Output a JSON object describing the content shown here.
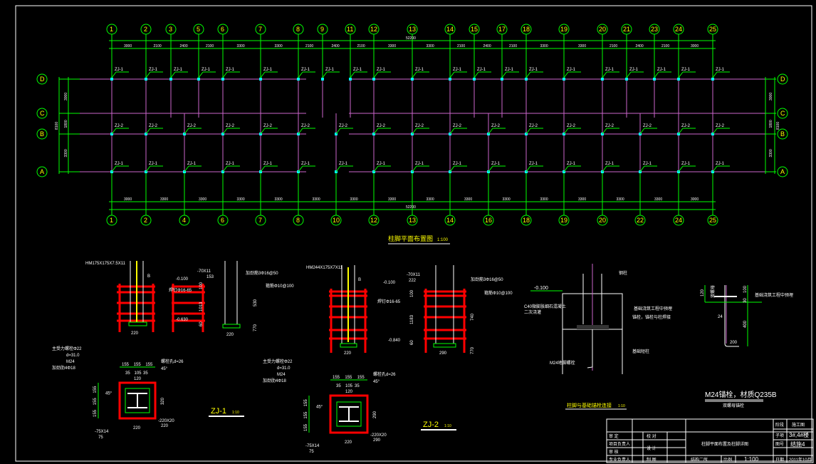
{
  "plan": {
    "axes_top": [
      "1",
      "2",
      "3",
      "5",
      "6",
      "7",
      "8",
      "9",
      "11",
      "12",
      "13",
      "14",
      "15",
      "17",
      "18",
      "19",
      "20",
      "21",
      "23",
      "24",
      "25"
    ],
    "dims_top": [
      "3000",
      "2100",
      "2400",
      "2100",
      "3300",
      "3300",
      "2100",
      "2400",
      "2100",
      "3300",
      "3300",
      "2100",
      "2400",
      "2100",
      "3300",
      "3300",
      "2100",
      "2400",
      "2100",
      "3000"
    ],
    "axes_bottom": [
      "1",
      "2",
      "4",
      "6",
      "7",
      "8",
      "10",
      "12",
      "13",
      "14",
      "16",
      "18",
      "19",
      "20",
      "22",
      "24",
      "25"
    ],
    "dims_bottom": [
      "3000",
      "3300",
      "3300",
      "3300",
      "3300",
      "3300",
      "3300",
      "3300",
      "3300",
      "3300",
      "3300",
      "3300",
      "3300",
      "3300",
      "3300",
      "3000"
    ],
    "total": "52200",
    "rows": [
      "D",
      "C",
      "B",
      "A"
    ],
    "row_dims": [
      "3000",
      "1800",
      "3300"
    ],
    "row_total": "8100",
    "col_label_1": "ZJ-1",
    "col_label_2": "ZJ-2",
    "title": "柱脚平面布置图",
    "scale": "1:100"
  },
  "zj1_elev": {
    "section": "HM175X175X7.5X11",
    "cut": "B",
    "elev_top": "-0.100",
    "elev_bot": "-0.630",
    "plate": "-70X11",
    "plate_w": "153",
    "stud": "焊钉Φ16-65",
    "bar": "加劲筋3Φ16@50",
    "stirrup": "箍筋Φ10@100",
    "d1": "100",
    "d2": "1013",
    "d3": "60",
    "h1": "530",
    "h2": "770",
    "w1": "220",
    "w2": "220"
  },
  "zj2_elev": {
    "section": "HM244X175X7X11",
    "cut": "B",
    "elev_top": "-0.100",
    "elev_bot": "-0.840",
    "plate": "-70X11",
    "plate_w": "222",
    "stud": "焊钉Φ16-65",
    "bar": "加劲筋3Φ16@50",
    "stirrup": "箍筋Φ10@100",
    "d1": "100",
    "d2": "1183",
    "d3": "60",
    "h1": "740",
    "h2": "770",
    "w1": "220",
    "w2": "290"
  },
  "zj1_plan": {
    "dims_top": [
      "155",
      "155",
      "155"
    ],
    "dims_mid": [
      "35",
      "105",
      "35"
    ],
    "d120": "120",
    "side": [
      "155",
      "155",
      "155"
    ],
    "depth": "320",
    "width": "220",
    "angle": "45°",
    "bolt1": "主受力螺栓Φ22",
    "bolt2": "d=31.0",
    "bolt3": "M24",
    "bolt4": "加劲肋4Φ18",
    "hole": "螺栓孔d=26",
    "base": "-220X20",
    "base_w": "220",
    "stiff": "-75X14",
    "stiff_w": "75",
    "name": "ZJ-1",
    "scale": "1:10"
  },
  "zj2_plan": {
    "dims_top": [
      "155",
      "155",
      "155"
    ],
    "dims_mid": [
      "35",
      "105",
      "35"
    ],
    "d120": "120",
    "side": [
      "155",
      "155",
      "155"
    ],
    "depth": "290",
    "width": "220",
    "angle": "45°",
    "bolt1": "主受力螺栓Φ22",
    "bolt2": "d=31.0",
    "bolt3": "M24",
    "bolt4": "加劲肋4Φ18",
    "hole": "螺栓孔d=26",
    "base": "-220X20",
    "base_w": "290",
    "stiff": "-75X14",
    "stiff_w": "75",
    "name": "ZJ-2",
    "scale": "1:10"
  },
  "base_detail": {
    "elev": "-0.100",
    "grout": "C40微膨胀细石混凝土",
    "grout2": "二次浇灌",
    "bolt": "M24地脚螺栓",
    "steel": "钢柱",
    "note1": "基础浇筑工程中预埋",
    "note2": "锚栓，锚栓与柱焊接",
    "found": "基础短柱",
    "title": "柱脚与基础锚栓连接",
    "scale": "1:10"
  },
  "anchor": {
    "d_top": "120",
    "d1": "100",
    "d2": "30",
    "d_len": "400",
    "hook": "200",
    "dia": "24",
    "nut": "双螺母",
    "note": "基础浇筑工程中预埋",
    "title": "M24锚栓，材质Q235B",
    "subtitle": "双螺母锚栓"
  },
  "title_block": {
    "r1": "审  定",
    "r2": "项目负责人",
    "r3": "审  核",
    "r4": "专业负责人",
    "c1": "校 对",
    "c2": "设 计",
    "c3": "制 图",
    "drawing": "柱脚平面布置及柱脚详图",
    "dept": "结构二所",
    "scale_label": "比例",
    "scale": "1:100",
    "stage_label": "阶段",
    "stage": "施工图",
    "sub_label": "子项",
    "sub": "3#,4#楼",
    "no_label": "图号",
    "no": "结施4",
    "date_label": "日期",
    "date": "2011年10月"
  }
}
